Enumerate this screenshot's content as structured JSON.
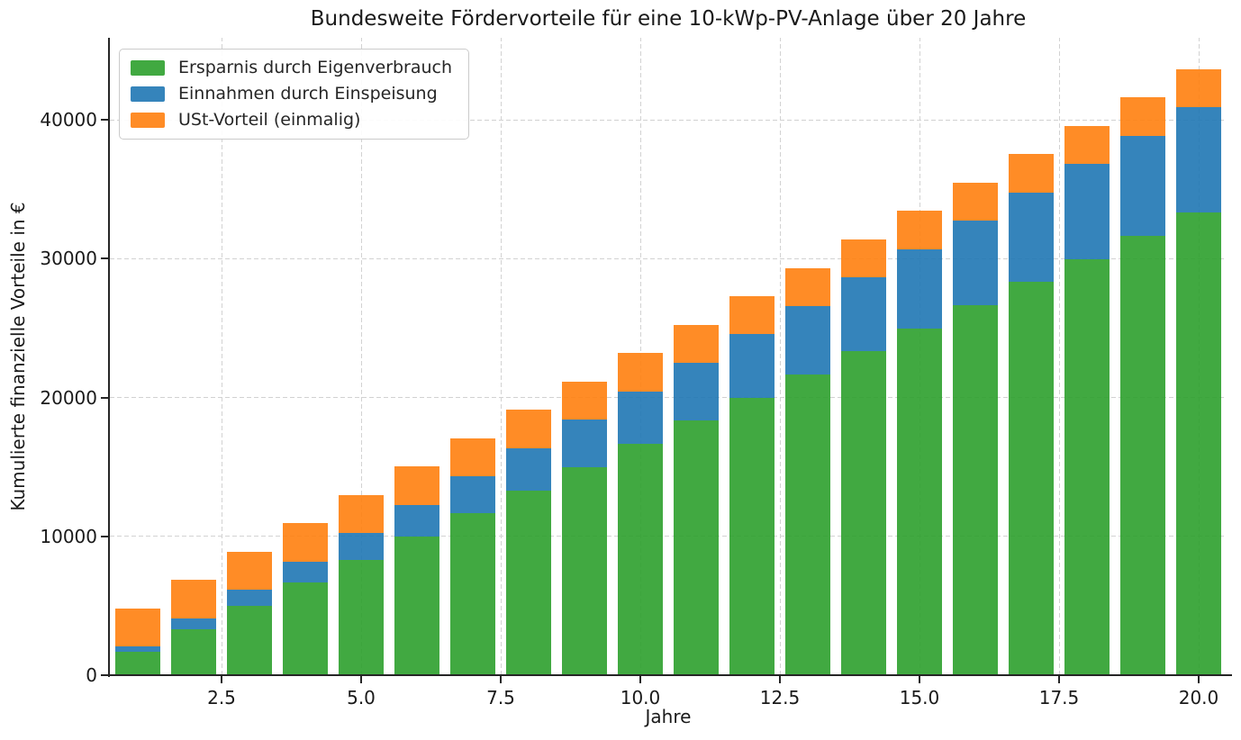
{
  "chart_data": {
    "type": "bar",
    "stacked": true,
    "title": "Bundesweite Fördervorteile für eine 10-kWp-PV-Anlage über 20 Jahre",
    "xlabel": "Jahre",
    "ylabel": "Kumulierte finanzielle Vorteile in €",
    "years": [
      1,
      2,
      3,
      4,
      5,
      6,
      7,
      8,
      9,
      10,
      11,
      12,
      13,
      14,
      15,
      16,
      17,
      18,
      19,
      20
    ],
    "series": [
      {
        "name": "Ersparnis durch Eigenverbrauch",
        "color": "#2ca02c",
        "values": [
          1665,
          3330,
          4995,
          6660,
          8325,
          9990,
          11655,
          13320,
          14985,
          16650,
          18315,
          19980,
          21645,
          23310,
          24975,
          26640,
          28305,
          29970,
          31635,
          33300
        ]
      },
      {
        "name": "Einnahmen durch Einspeisung",
        "color": "#1f77b4",
        "values": [
          380,
          760,
          1140,
          1520,
          1900,
          2280,
          2660,
          3040,
          3420,
          3800,
          4180,
          4560,
          4940,
          5320,
          5700,
          6080,
          6460,
          6840,
          7220,
          7600
        ]
      },
      {
        "name": "USt-Vorteil (einmalig)",
        "color": "#ff7f0e",
        "values": [
          2750,
          2750,
          2750,
          2750,
          2750,
          2750,
          2750,
          2750,
          2750,
          2750,
          2750,
          2750,
          2750,
          2750,
          2750,
          2750,
          2750,
          2750,
          2750,
          2750
        ]
      }
    ],
    "bar_totals": [
      4795,
      6840,
      8885,
      10930,
      12975,
      15020,
      17065,
      19110,
      21155,
      23200,
      25245,
      27290,
      29335,
      31380,
      33425,
      35470,
      37515,
      39560,
      41605,
      43650
    ],
    "xlim": [
      0.5,
      20.5
    ],
    "ylim": [
      0,
      45900
    ],
    "x_ticks": {
      "values": [
        2.5,
        5,
        7.5,
        10,
        12.5,
        15,
        17.5,
        20
      ],
      "labels": [
        "2.5",
        "5.0",
        "7.5",
        "10.0",
        "12.5",
        "15.0",
        "17.5",
        "20.0"
      ]
    },
    "y_ticks": {
      "values": [
        0,
        10000,
        20000,
        30000,
        40000
      ],
      "labels": [
        "0",
        "10000",
        "20000",
        "30000",
        "40000"
      ]
    },
    "bar_width_units": 0.8,
    "grid": {
      "style": "dashed",
      "color": "#d2d2d2",
      "horizontal": true,
      "vertical": true
    },
    "legend_position": "upper left"
  }
}
